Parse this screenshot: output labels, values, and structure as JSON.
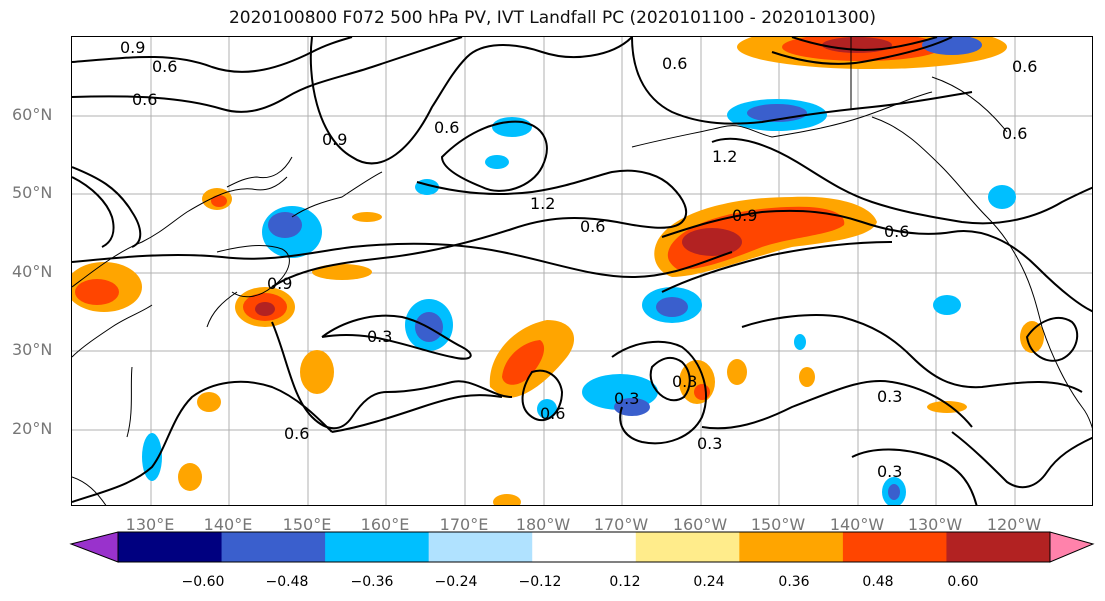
{
  "title": "2020100800 F072 500 hPa PV, IVT Landfall PC (2020101100 - 2020101300)",
  "latitude_labels": [
    "60°N",
    "50°N",
    "40°N",
    "30°N",
    "20°N"
  ],
  "longitude_labels": [
    "130°E",
    "140°E",
    "150°E",
    "160°E",
    "170°E",
    "180°W",
    "170°W",
    "160°W",
    "150°W",
    "140°W",
    "130°W",
    "120°W"
  ],
  "contour_labels": [
    "0.9",
    "0.6",
    "0.6",
    "0.6",
    "0.9",
    "1.2",
    "1.2",
    "0.6",
    "0.6",
    "0.9",
    "0.6",
    "0.6",
    "0.3",
    "0.6",
    "0.3",
    "0.6",
    "0.3",
    "0.3",
    "0.3",
    "0.3",
    "0.9",
    "0.6"
  ],
  "colorbar": {
    "colors": [
      "#9932cc",
      "#000080",
      "#3a5fcd",
      "#00bfff",
      "#b0e2ff",
      "#ffffff",
      "#ffec8b",
      "#ffa500",
      "#ff4500",
      "#b22222",
      "#ff82ab"
    ],
    "tick_labels": [
      "−0.60",
      "−0.48",
      "−0.36",
      "−0.24",
      "−0.12",
      "0.12",
      "0.24",
      "0.36",
      "0.48",
      "0.60"
    ]
  }
}
